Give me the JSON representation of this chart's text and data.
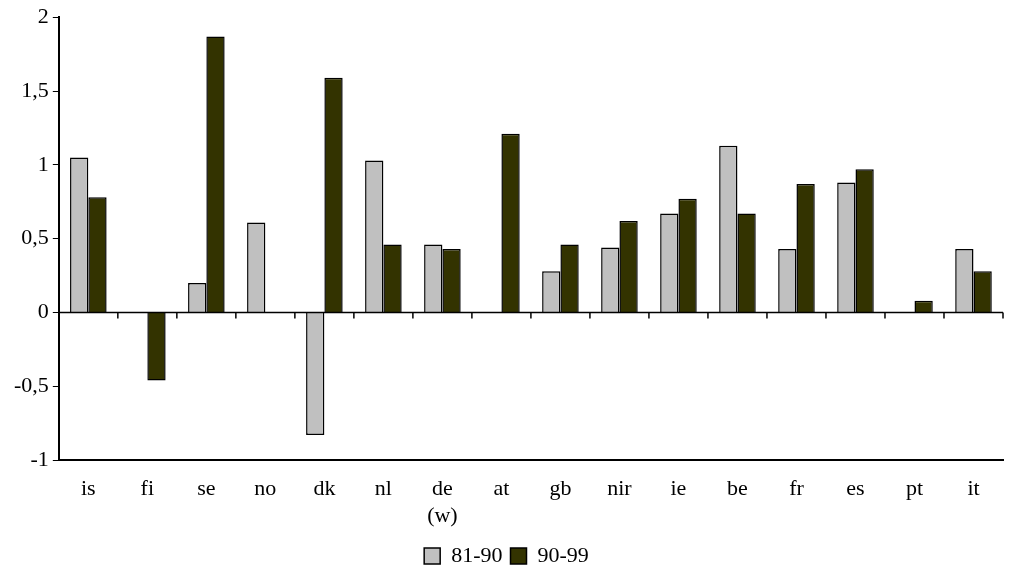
{
  "chart_data": {
    "type": "bar",
    "categories": [
      "is",
      "fi",
      "se",
      "no",
      "dk",
      "nl",
      "de\n(w)",
      "at",
      "gb",
      "nir",
      "ie",
      "be",
      "fr",
      "es",
      "pt",
      "it"
    ],
    "series": [
      {
        "name": "81-90",
        "color": "#c0c0c0",
        "values": [
          1.05,
          null,
          0.2,
          0.61,
          -0.83,
          1.03,
          0.46,
          null,
          0.28,
          0.44,
          0.67,
          1.13,
          0.43,
          0.88,
          null,
          0.43
        ]
      },
      {
        "name": "90-99",
        "color": "#333300",
        "values": [
          0.78,
          -0.46,
          1.87,
          null,
          1.59,
          0.46,
          0.43,
          1.21,
          0.46,
          0.62,
          0.77,
          0.67,
          0.87,
          0.97,
          0.08,
          0.28
        ]
      }
    ],
    "ylim": [
      -1,
      2
    ],
    "yticks": [
      {
        "value": -1,
        "label": "-1"
      },
      {
        "value": -0.5,
        "label": "-0,5"
      },
      {
        "value": 0,
        "label": "0"
      },
      {
        "value": 0.5,
        "label": "0,5"
      },
      {
        "value": 1,
        "label": "1"
      },
      {
        "value": 1.5,
        "label": "1,5"
      },
      {
        "value": 2,
        "label": "2"
      }
    ],
    "legend": "bottom"
  }
}
